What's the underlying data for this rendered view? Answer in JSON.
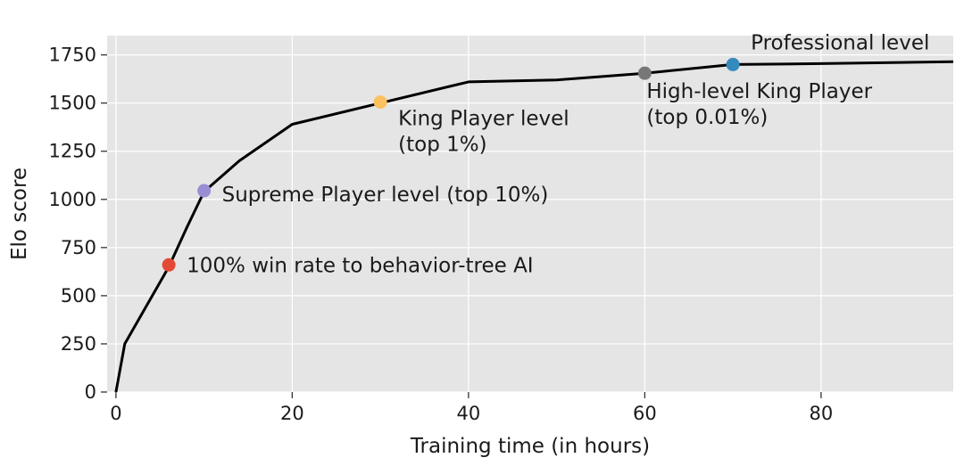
{
  "chart_data": {
    "type": "line",
    "xlabel": "Training time (in hours)",
    "ylabel": "Elo score",
    "xlim": [
      -1,
      95
    ],
    "ylim": [
      0,
      1850
    ],
    "xticks": [
      0,
      20,
      40,
      60,
      80
    ],
    "yticks": [
      0,
      250,
      500,
      750,
      1000,
      1250,
      1500,
      1750
    ],
    "grid": true,
    "background": "#e5e5e5",
    "grid_color": "#ffffff",
    "series": [
      {
        "color": "#000000",
        "x": [
          0,
          1,
          3,
          5,
          6,
          8,
          10,
          14,
          20,
          30,
          40,
          50,
          60,
          70,
          80,
          95
        ],
        "y": [
          0,
          250,
          410,
          570,
          650,
          850,
          1040,
          1200,
          1390,
          1500,
          1610,
          1620,
          1655,
          1700,
          1705,
          1715
        ]
      }
    ],
    "milestones": [
      {
        "x": 6,
        "y": 660,
        "color": "#e24a33",
        "label": [
          "100% win rate to behavior-tree AI"
        ]
      },
      {
        "x": 10,
        "y": 1045,
        "color": "#988ed5",
        "label": [
          "Supreme Player level (top 10%)"
        ]
      },
      {
        "x": 30,
        "y": 1505,
        "color": "#fbc15e",
        "label": [
          "King Player level",
          "(top 1%)"
        ]
      },
      {
        "x": 60,
        "y": 1655,
        "color": "#777777",
        "label": [
          "High-level King Player",
          "(top 0.01%)"
        ]
      },
      {
        "x": 70,
        "y": 1700,
        "color": "#348abd",
        "label": [
          "Professional level"
        ]
      }
    ]
  }
}
